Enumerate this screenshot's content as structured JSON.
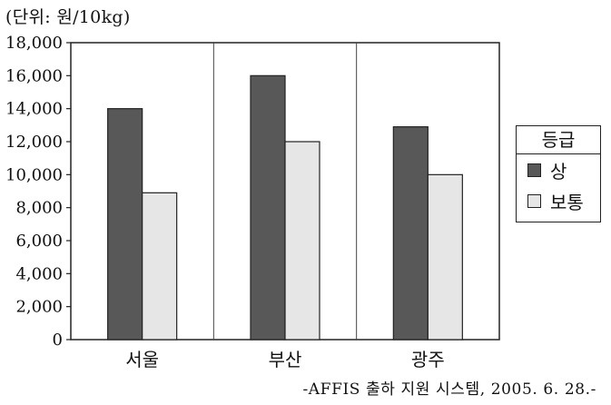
{
  "unit_label": "(단위: 원/10kg)",
  "source_note": "-AFFIS 출하 지원 시스템, 2005. 6. 28.-",
  "legend": {
    "title": "등급",
    "placement": "right",
    "items": [
      {
        "label": "상",
        "color": "#585858"
      },
      {
        "label": "보통",
        "color": "#e6e6e6"
      }
    ]
  },
  "chart_data": {
    "type": "bar",
    "categories": [
      "서울",
      "부산",
      "광주"
    ],
    "series": [
      {
        "name": "상",
        "values": [
          14000,
          16000,
          12900
        ],
        "color": "#585858"
      },
      {
        "name": "보통",
        "values": [
          8900,
          12000,
          10000
        ],
        "color": "#e6e6e6"
      }
    ],
    "ylim": [
      0,
      18000
    ],
    "y_ticks": [
      0,
      2000,
      4000,
      6000,
      8000,
      10000,
      12000,
      14000,
      16000,
      18000
    ],
    "y_tick_labels": [
      "0",
      "2,000",
      "4,000",
      "6,000",
      "8,000",
      "10,000",
      "12,000",
      "14,000",
      "16,000",
      "18,000"
    ],
    "grid": {
      "horizontal": false,
      "vertical_category_separators": true
    }
  }
}
